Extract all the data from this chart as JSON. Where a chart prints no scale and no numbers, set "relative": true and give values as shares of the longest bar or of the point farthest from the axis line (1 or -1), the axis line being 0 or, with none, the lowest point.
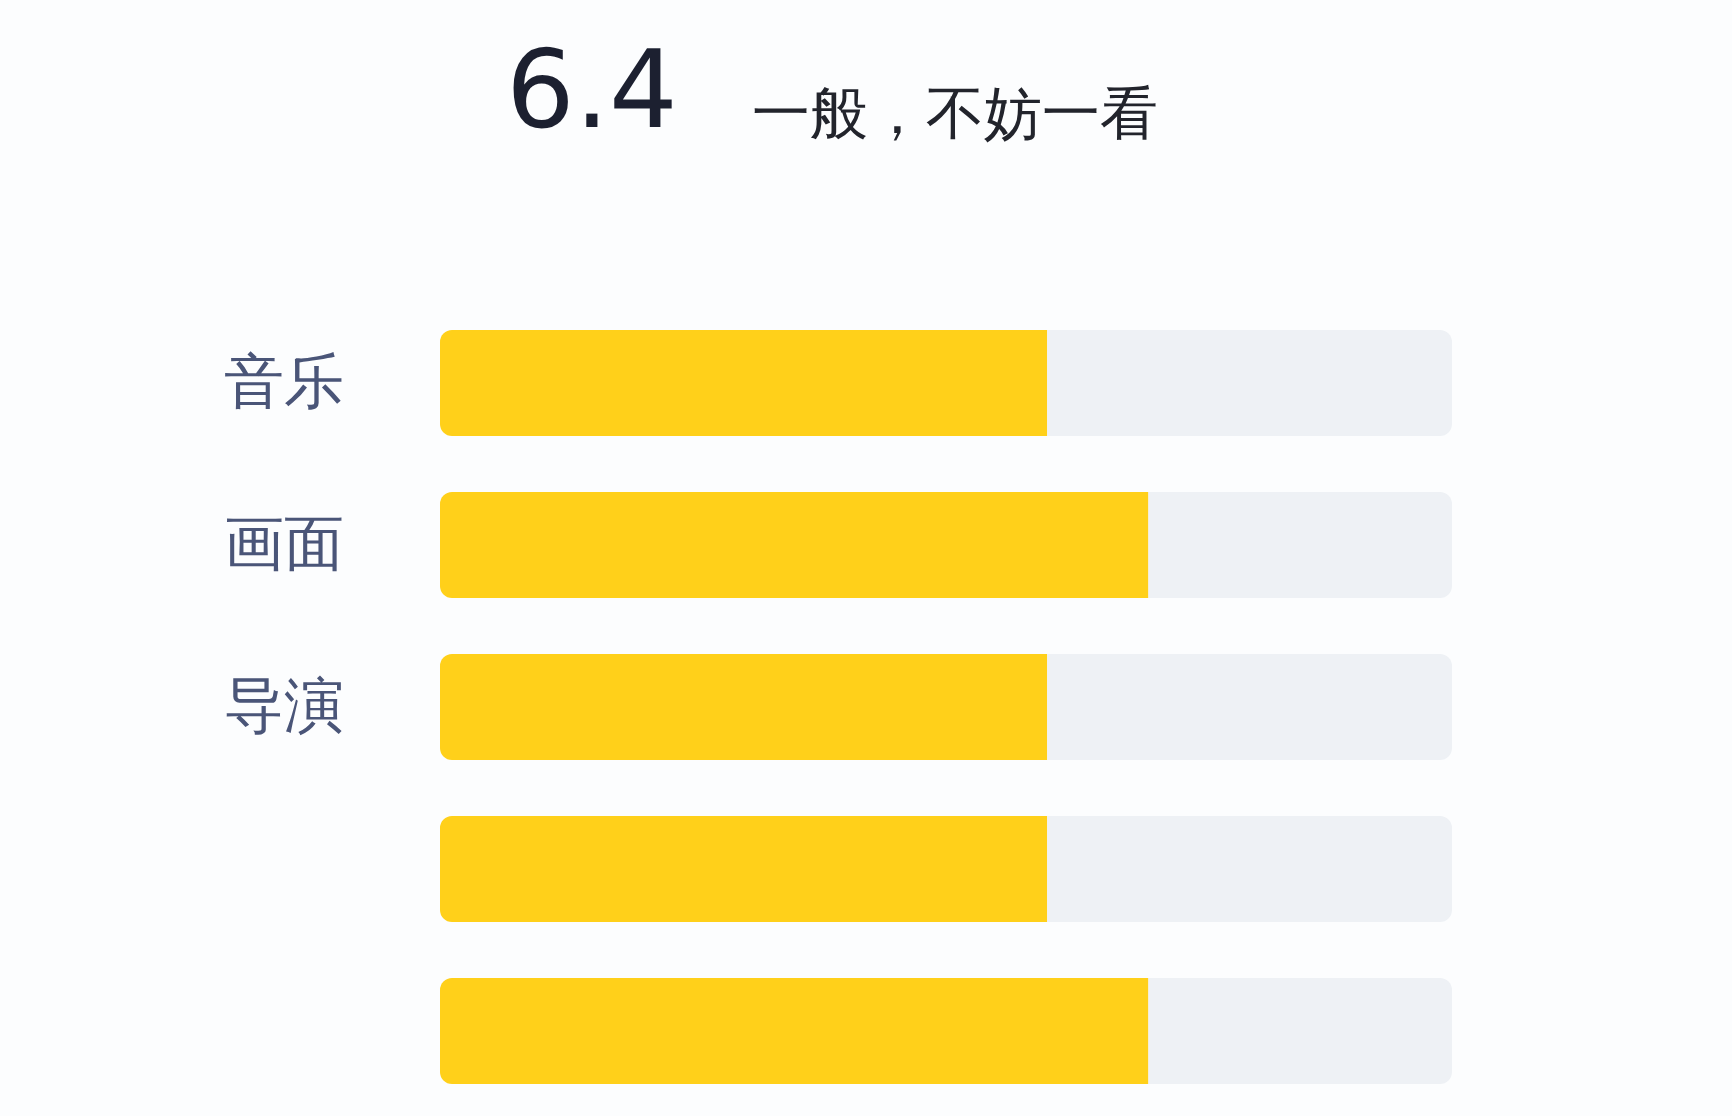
{
  "chart_data": {
    "type": "bar",
    "orientation": "horizontal",
    "stacked": true,
    "relative": true,
    "title": "6.4",
    "subtitle": "一般，不妨一看",
    "categories": [
      "音乐",
      "画面",
      "导演",
      null,
      null
    ],
    "series": [
      {
        "color": "#ffd01a",
        "values": [
          0.6,
          0.7,
          0.6,
          0.6,
          0.7
        ]
      },
      {
        "color": "#eef1f5",
        "values": [
          0.4,
          0.3,
          0.4,
          0.4,
          0.3
        ]
      }
    ],
    "tick_labels": "y"
  }
}
